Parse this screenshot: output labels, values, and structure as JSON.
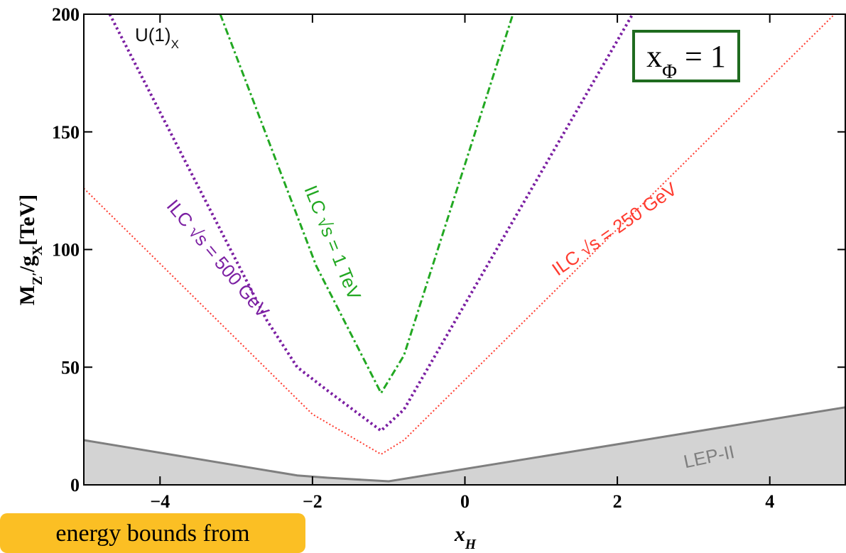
{
  "chart_data": {
    "type": "line",
    "x_label": [
      "x",
      "H"
    ],
    "y_label": [
      "M",
      "Z′",
      "/g",
      "X",
      "[TeV]"
    ],
    "annotations": {
      "model": [
        "U(1)",
        "X"
      ],
      "box": [
        "x",
        "Φ",
        " = 1"
      ]
    },
    "box_color": "#1f6b1f",
    "xlim": [
      -5,
      5
    ],
    "ylim": [
      0,
      200
    ],
    "xticks": [
      {
        "value": -4,
        "label": "−4"
      },
      {
        "value": -2,
        "label": "−2"
      },
      0,
      2,
      4
    ],
    "yticks": [
      0,
      50,
      100,
      150,
      200
    ],
    "series": [
      {
        "name": "LEP-II",
        "color": "#7f7f7f",
        "fill": "#d3d3d3",
        "linestyle": "solid",
        "x": [
          -5,
          -2.2,
          -1.8,
          -1.0,
          5
        ],
        "values": [
          19,
          4,
          3,
          1.5,
          33
        ]
      },
      {
        "name": "ILC √s = 250 GeV",
        "color": "#ff3b2f",
        "linestyle": "dotted",
        "x": [
          -5,
          -2.0,
          -1.1,
          -0.8,
          4.85
        ],
        "values": [
          126,
          30,
          13,
          19,
          200
        ]
      },
      {
        "name": "ILC √s = 500 GeV",
        "color": "#7b1fa2",
        "linestyle": "dashed",
        "x": [
          -4.66,
          -2.6,
          -2.2,
          -1.8,
          -1.1,
          -0.8,
          2.2
        ],
        "values": [
          200,
          70,
          50,
          40,
          23,
          32,
          200
        ]
      },
      {
        "name": "ILC √s = 1 TeV",
        "color": "#22a822",
        "linestyle": "dashdot",
        "x": [
          -3.21,
          -1.95,
          -1.1,
          -0.8,
          0.63
        ],
        "values": [
          200,
          93,
          39,
          55,
          200
        ]
      }
    ]
  },
  "caption": "energy bounds from"
}
